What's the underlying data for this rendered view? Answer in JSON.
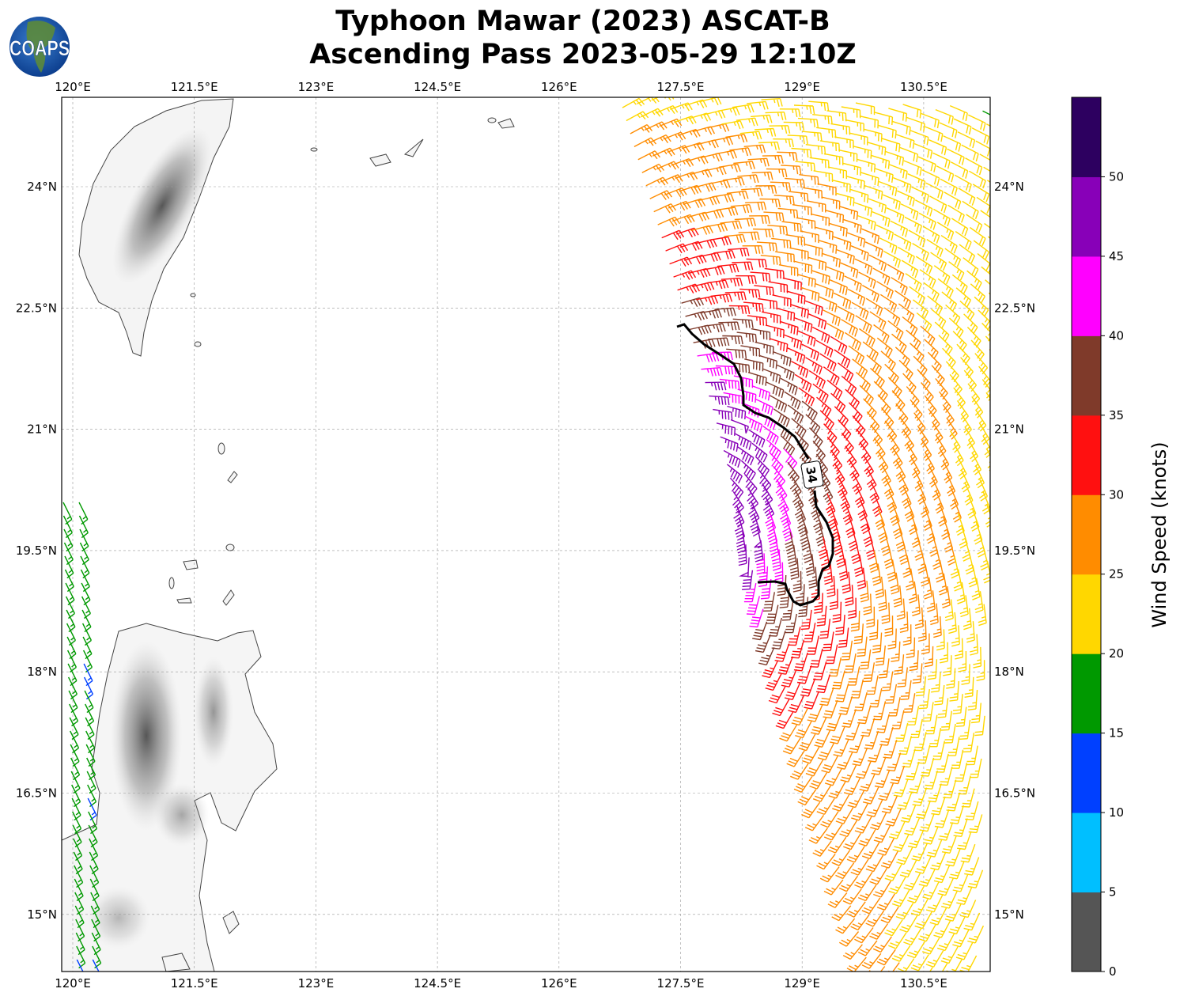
{
  "title": {
    "line1": "Typhoon Mawar (2023) ASCAT-B",
    "line2": "Ascending Pass 2023-05-29 12:10Z"
  },
  "logo": {
    "text": "COAPS"
  },
  "map": {
    "lon_ticks": [
      "120°E",
      "121.5°E",
      "123°E",
      "124.5°E",
      "126°E",
      "127.5°E",
      "129°E",
      "130.5°E"
    ],
    "lat_ticks": [
      "24°N",
      "22.5°N",
      "21°N",
      "19.5°N",
      "18°N",
      "16.5°N",
      "15°N"
    ],
    "contour_label": "34"
  },
  "colorbar": {
    "label": "Wind Speed (knots)",
    "tick_labels": [
      "0",
      "5",
      "10",
      "15",
      "20",
      "25",
      "30",
      "35",
      "40",
      "45",
      "50"
    ],
    "bins_knots": [
      0,
      5,
      10,
      15,
      20,
      25,
      30,
      35,
      40,
      45,
      50,
      55
    ],
    "colors": [
      "#555555",
      "#00bfff",
      "#0040ff",
      "#009900",
      "#ffd700",
      "#ff8c00",
      "#ff1010",
      "#7f3a2a",
      "#ff00ff",
      "#8800b8",
      "#2d0060"
    ]
  }
}
